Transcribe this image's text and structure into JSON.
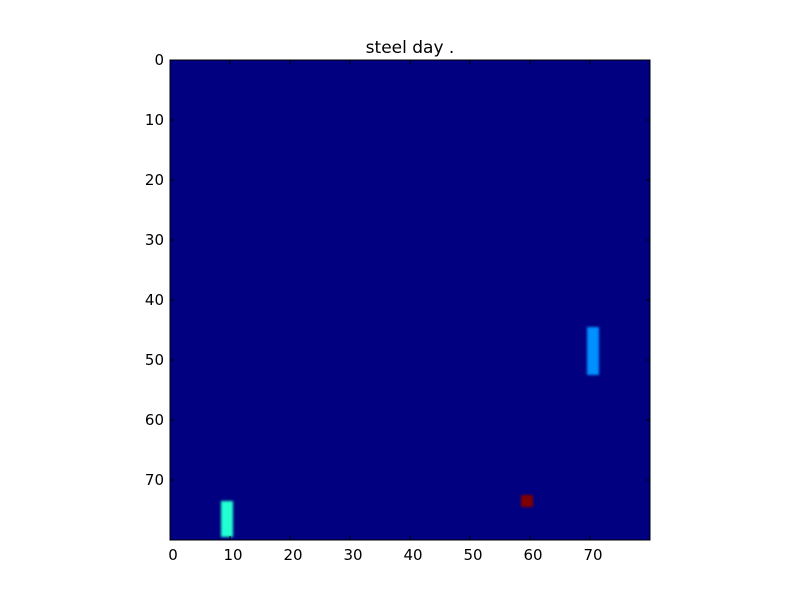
{
  "title": "steel day .",
  "grid_size": [
    80,
    80
  ],
  "x_ticks": [
    "0",
    "10",
    "20",
    "30",
    "40",
    "50",
    "60",
    "70"
  ],
  "y_ticks": [
    "0",
    "10",
    "20",
    "30",
    "40",
    "50",
    "60",
    "70"
  ],
  "colors": {
    "background": "#000080",
    "paddle_right": "#0090ff",
    "paddle_left": "#20ffd0",
    "ball": "#800000"
  },
  "objects": [
    {
      "name": "paddle-right",
      "x": 70,
      "y_start": 45,
      "y_end": 52,
      "color_key": "paddle_right"
    },
    {
      "name": "paddle-left",
      "x": 9,
      "y_start": 74,
      "y_end": 79,
      "color_key": "paddle_left"
    },
    {
      "name": "ball",
      "x": 59,
      "y_start": 73,
      "y_end": 74,
      "color_key": "ball"
    }
  ]
}
